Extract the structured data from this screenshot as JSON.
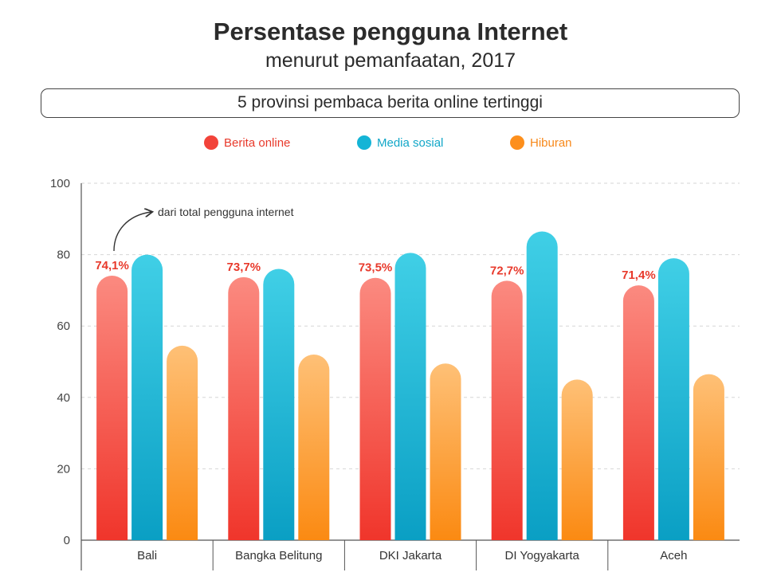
{
  "title": "Persentase pengguna Internet",
  "subtitle": "menurut pemanfaatan, 2017",
  "subheading": "5 provinsi pembaca berita online tertinggi",
  "annotation": "dari total pengguna internet",
  "colors": {
    "berita": "#f2433a",
    "media": "#14b4d6",
    "hiburan": "#fd8f1c"
  },
  "chart_data": {
    "type": "bar",
    "categories": [
      "Bali",
      "Bangka Belitung",
      "DKI Jakarta",
      "DI Yogyakarta",
      "Aceh"
    ],
    "series": [
      {
        "name": "Berita online",
        "values": [
          74.1,
          73.7,
          73.5,
          72.7,
          71.4
        ],
        "labels": [
          "74,1%",
          "73,7%",
          "73,5%",
          "72,7%",
          "71,4%"
        ]
      },
      {
        "name": "Media sosial",
        "values": [
          80,
          76,
          80.5,
          86.5,
          79
        ]
      },
      {
        "name": "Hiburan",
        "values": [
          54.5,
          52,
          49.5,
          45,
          46.5
        ]
      }
    ],
    "ylim": [
      0,
      100
    ],
    "yticks": [
      "0",
      "20",
      "40",
      "60",
      "80",
      "100"
    ],
    "grid": true,
    "legend_position": "top-center"
  }
}
